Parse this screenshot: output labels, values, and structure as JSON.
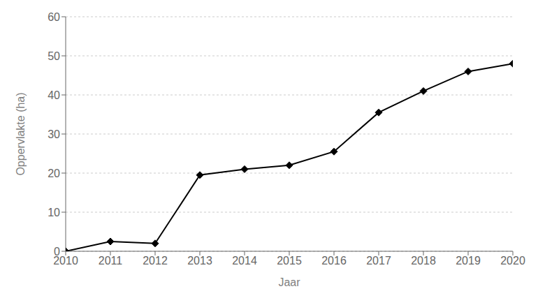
{
  "chart_data": {
    "type": "line",
    "x": [
      2010,
      2011,
      2012,
      2013,
      2014,
      2015,
      2016,
      2017,
      2018,
      2019,
      2020
    ],
    "values": [
      0,
      2.5,
      2.0,
      19.5,
      21.0,
      22.0,
      25.5,
      35.5,
      41.0,
      46.0,
      48.0
    ],
    "xlabel": "Jaar",
    "ylabel": "Oppervlakte (ha)",
    "xlim": [
      2010,
      2020
    ],
    "ylim": [
      0,
      60
    ],
    "xticks": [
      2010,
      2011,
      2012,
      2013,
      2014,
      2015,
      2016,
      2017,
      2018,
      2019,
      2020
    ],
    "yticks": [
      0,
      10,
      20,
      30,
      40,
      50,
      60
    ],
    "color": "#000000",
    "marker": "diamond",
    "grid": true
  }
}
